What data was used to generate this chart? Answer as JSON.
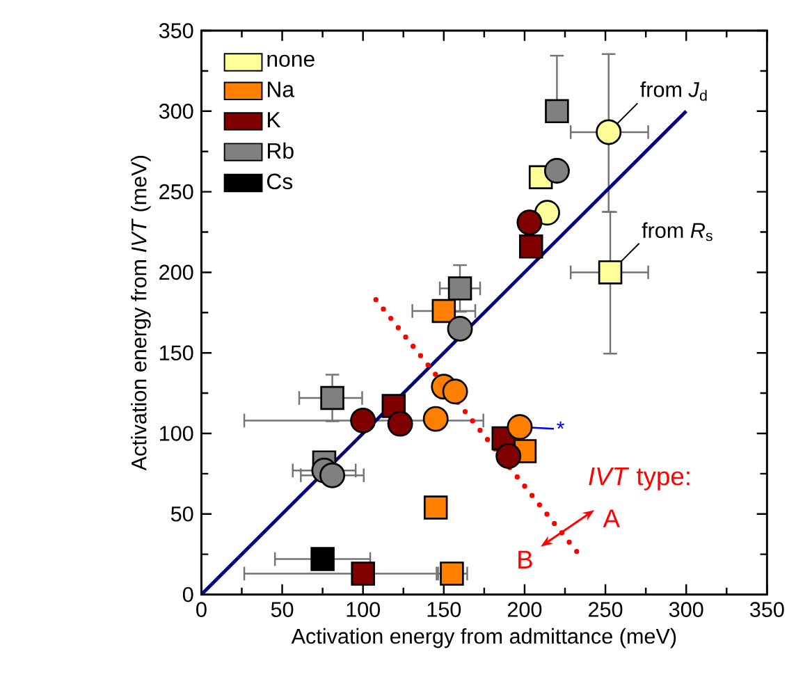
{
  "chart_data": {
    "type": "scatter",
    "xlabel": "Activation energy from admittance (meV)",
    "ylabel": "Activation energy from *IVT* (meV)",
    "xlim": [
      0,
      350
    ],
    "ylim": [
      0,
      350
    ],
    "xticks": [
      0,
      50,
      100,
      150,
      200,
      250,
      300,
      350
    ],
    "yticks": [
      0,
      50,
      100,
      150,
      200,
      250,
      300,
      350
    ],
    "grid": false,
    "legend": "top left",
    "series": [
      {
        "name": "none",
        "color": "#ffff99",
        "marker": "square",
        "x": [
          210,
          253
        ],
        "values": [
          259,
          200
        ],
        "errors": [
          null,
          [
            149,
            238
          ]
        ],
        "xerrors": [
          null,
          [
            228,
            277
          ]
        ]
      },
      {
        "name": "Na",
        "color": "#ff8000",
        "marker": "square",
        "x": [
          150,
          145,
          155,
          200
        ],
        "values": [
          176,
          54,
          13,
          89
        ],
        "xerrors": [
          20,
          null,
          10,
          null
        ]
      },
      {
        "name": "K",
        "color": "#800000",
        "marker": "square",
        "x": [
          119,
          187,
          204,
          100
        ],
        "values": [
          117,
          97,
          216,
          13
        ],
        "xerrors": [
          null,
          null,
          null,
          [
            26,
            147
          ]
        ]
      },
      {
        "name": "Rb",
        "color": "#808080",
        "marker": "square",
        "x": [
          220,
          160,
          81,
          76
        ],
        "values": [
          300,
          190,
          122,
          82
        ],
        "errors": [
          [
            300,
            335
          ],
          15,
          15,
          null
        ],
        "xerrors": [
          5,
          13,
          [
            60,
            100
          ],
          null
        ]
      },
      {
        "name": "Cs",
        "color": "#000000",
        "marker": "square",
        "x": [
          75
        ],
        "values": [
          22
        ],
        "xerrors": [
          30
        ]
      },
      {
        "color": "#ffff99",
        "marker": "circle",
        "x": [
          214,
          252
        ],
        "values": [
          237,
          287
        ],
        "errors": [
          null,
          [
            237,
            336
          ]
        ],
        "xerrors": [
          null,
          [
            228,
            277
          ]
        ]
      },
      {
        "color": "#ff8000",
        "marker": "circle",
        "x": [
          150,
          157,
          145,
          197
        ],
        "values": [
          129,
          126,
          109,
          104
        ]
      },
      {
        "color": "#800000",
        "marker": "circle",
        "x": [
          100,
          123,
          190,
          203
        ],
        "values": [
          108,
          106,
          86,
          231
        ],
        "xerrors": [
          [
            26,
            175
          ],
          null,
          null,
          null
        ]
      },
      {
        "color": "#808080",
        "marker": "circle",
        "x": [
          220,
          160,
          76,
          81
        ],
        "values": [
          263,
          165,
          77,
          74
        ],
        "xerrors": [
          null,
          null,
          20,
          20
        ]
      },
      {
        "type": "line",
        "color": "#000080",
        "line_style": "solid",
        "marker": "none",
        "x": [
          0,
          300
        ],
        "values": [
          0,
          300
        ]
      },
      {
        "type": "line",
        "color": "#ff0000",
        "line_style": "dotted",
        "marker": "none",
        "x": [
          108,
          236
        ],
        "values": [
          183,
          22
        ]
      }
    ],
    "annotations": [
      {
        "text": "from *J*$_{d}$",
        "x": 252,
        "y": 287
      },
      {
        "text": "from *R*$_{s}$",
        "x": 253,
        "y": 200
      },
      {
        "text": "*",
        "x": 197,
        "y": 104
      },
      "*IVT* type:",
      "A",
      "B"
    ]
  }
}
